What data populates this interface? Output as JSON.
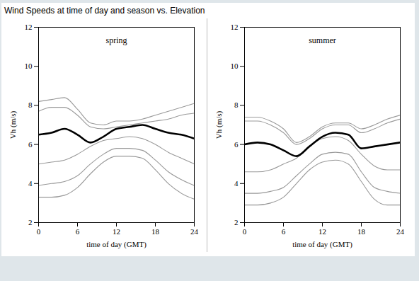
{
  "title": "Wind Speeds at time of day and season vs. Elevation",
  "chart_data": [
    {
      "type": "line",
      "title": "spring",
      "xlabel": "time of day (GMT)",
      "ylabel": "Vh (m/s)",
      "x": [
        0,
        2,
        4,
        6,
        8,
        10,
        12,
        14,
        16,
        18,
        20,
        22,
        24
      ],
      "xlim": [
        0,
        24
      ],
      "xticks": [
        0,
        6,
        12,
        18,
        24
      ],
      "ylim": [
        2,
        12
      ],
      "yticks": [
        2,
        4,
        6,
        8,
        10,
        12
      ],
      "series": [
        {
          "color": "#999999",
          "values": [
            8.2,
            8.3,
            8.4,
            7.8,
            7.1,
            7.0,
            7.2,
            7.2,
            7.3,
            7.5,
            7.7,
            7.9,
            8.1
          ]
        },
        {
          "color": "#999999",
          "values": [
            7.7,
            7.9,
            7.9,
            7.5,
            6.9,
            6.8,
            6.9,
            7.0,
            7.1,
            7.2,
            7.3,
            7.5,
            7.6
          ]
        },
        {
          "color": "#999999",
          "values": [
            5.0,
            5.1,
            5.2,
            5.5,
            5.9,
            6.2,
            6.3,
            6.4,
            6.3,
            6.0,
            5.6,
            5.3,
            5.0
          ]
        },
        {
          "color": "#999999",
          "values": [
            3.9,
            4.0,
            4.1,
            4.4,
            5.0,
            5.5,
            5.8,
            5.8,
            5.7,
            5.2,
            4.6,
            4.2,
            3.9
          ]
        },
        {
          "color": "#999999",
          "values": [
            3.3,
            3.3,
            3.4,
            3.8,
            4.5,
            5.1,
            5.4,
            5.4,
            5.3,
            4.7,
            4.0,
            3.5,
            3.2
          ]
        },
        {
          "color": "#000000",
          "values": [
            6.5,
            6.6,
            6.8,
            6.5,
            6.1,
            6.4,
            6.8,
            6.9,
            7.0,
            6.8,
            6.6,
            6.5,
            6.3
          ]
        }
      ]
    },
    {
      "type": "line",
      "title": "summer",
      "xlabel": "time of day (GMT)",
      "ylabel": "Vh (m/s)",
      "x": [
        0,
        2,
        4,
        6,
        8,
        10,
        12,
        14,
        16,
        18,
        20,
        22,
        24
      ],
      "xlim": [
        0,
        24
      ],
      "xticks": [
        0,
        6,
        12,
        18,
        24
      ],
      "ylim": [
        2,
        12
      ],
      "yticks": [
        2,
        4,
        6,
        8,
        10,
        12
      ],
      "series": [
        {
          "color": "#999999",
          "values": [
            7.4,
            7.4,
            7.2,
            6.8,
            6.1,
            6.4,
            6.9,
            7.1,
            7.1,
            6.8,
            7.0,
            7.3,
            7.5
          ]
        },
        {
          "color": "#999999",
          "values": [
            7.2,
            7.2,
            7.0,
            6.6,
            6.0,
            6.3,
            6.8,
            7.0,
            7.0,
            6.6,
            6.8,
            7.1,
            7.3
          ]
        },
        {
          "color": "#999999",
          "values": [
            4.6,
            4.6,
            4.7,
            5.0,
            5.3,
            5.9,
            6.3,
            6.4,
            6.2,
            5.5,
            4.9,
            4.7,
            4.7
          ]
        },
        {
          "color": "#999999",
          "values": [
            3.5,
            3.5,
            3.6,
            3.8,
            4.4,
            5.0,
            5.5,
            5.6,
            5.5,
            4.6,
            3.8,
            3.6,
            3.5
          ]
        },
        {
          "color": "#999999",
          "values": [
            2.9,
            2.9,
            3.0,
            3.3,
            4.0,
            4.7,
            5.1,
            5.2,
            5.0,
            4.1,
            3.2,
            2.9,
            2.9
          ]
        },
        {
          "color": "#000000",
          "values": [
            6.0,
            6.1,
            6.0,
            5.7,
            5.4,
            5.9,
            6.4,
            6.6,
            6.5,
            5.8,
            5.9,
            6.0,
            6.1
          ]
        }
      ]
    }
  ]
}
